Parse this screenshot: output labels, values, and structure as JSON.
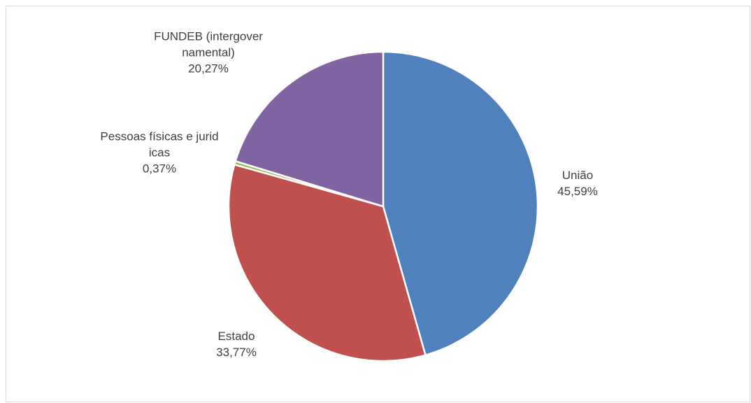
{
  "chart_data": {
    "type": "pie",
    "categories": [
      "União",
      "Estado",
      "Pessoas físicas e juridicas",
      "FUNDEB (intergovernamental)"
    ],
    "values": [
      45.59,
      33.77,
      0.37,
      20.27
    ],
    "value_labels": [
      "45,59%",
      "33,77%",
      "0,37%",
      "20,27%"
    ],
    "colors": [
      "#4f81bd",
      "#c0504d",
      "#9bbb59",
      "#8064a2"
    ]
  }
}
